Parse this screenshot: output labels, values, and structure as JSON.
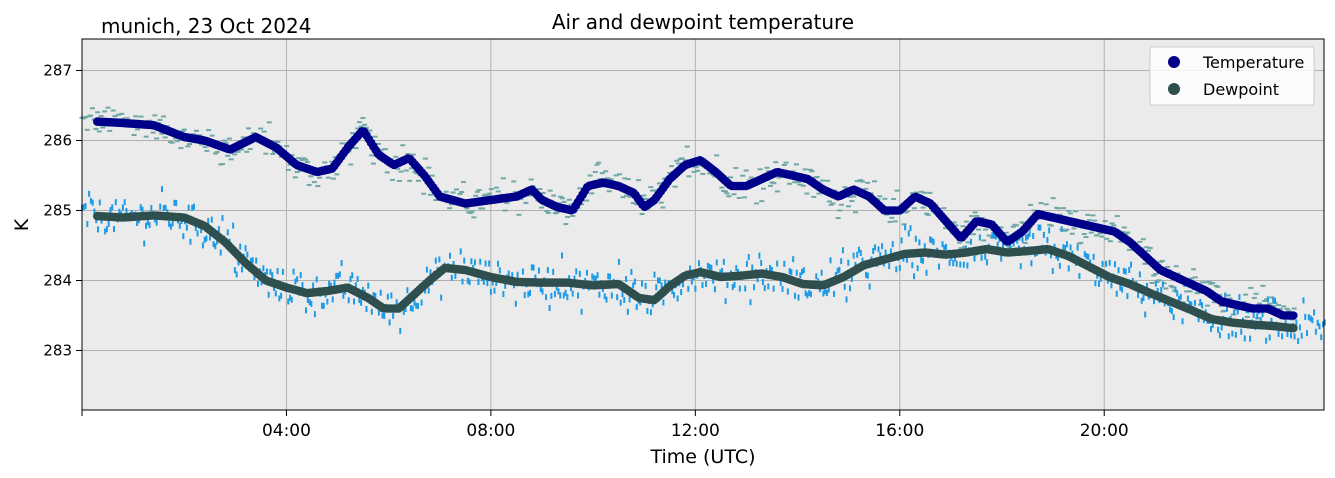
{
  "chart_data": {
    "type": "scatter",
    "title": "Air and dewpoint temperature",
    "subtitle": "munich, 23 Oct 2024",
    "xlabel": "Time (UTC)",
    "ylabel": "K",
    "x_unit": "hours_utc",
    "xlim": [
      0,
      24.3
    ],
    "ylim": [
      282.15,
      287.45
    ],
    "x_ticks": [
      {
        "value": 4,
        "label": "04:00"
      },
      {
        "value": 8,
        "label": "08:00"
      },
      {
        "value": 12,
        "label": "12:00"
      },
      {
        "value": 16,
        "label": "16:00"
      },
      {
        "value": 20,
        "label": "20:00"
      }
    ],
    "y_ticks": [
      {
        "value": 283,
        "label": "283"
      },
      {
        "value": 284,
        "label": "284"
      },
      {
        "value": 285,
        "label": "285"
      },
      {
        "value": 286,
        "label": "286"
      },
      {
        "value": 287,
        "label": "287"
      }
    ],
    "grid": true,
    "legend_position": "top-right",
    "background": "#ebebeb",
    "series": [
      {
        "name": "Temperature",
        "color": "#00008b",
        "raw_color": "#6fa8a6",
        "x": [
          0.3,
          0.8,
          1.4,
          2.0,
          2.4,
          2.9,
          3.4,
          3.8,
          4.2,
          4.6,
          4.9,
          5.2,
          5.5,
          5.8,
          6.1,
          6.4,
          6.7,
          7.0,
          7.5,
          8.0,
          8.5,
          8.8,
          9.0,
          9.3,
          9.6,
          9.9,
          10.2,
          10.5,
          10.8,
          11.0,
          11.2,
          11.5,
          11.8,
          12.1,
          12.4,
          12.7,
          13.0,
          13.3,
          13.6,
          13.9,
          14.2,
          14.5,
          14.8,
          15.1,
          15.4,
          15.7,
          16.0,
          16.3,
          16.6,
          16.9,
          17.2,
          17.5,
          17.8,
          18.1,
          18.4,
          18.7,
          19.0,
          19.3,
          19.6,
          19.9,
          20.2,
          20.5,
          20.8,
          21.1,
          21.4,
          21.7,
          22.0,
          22.3,
          22.6,
          22.9,
          23.2,
          23.5,
          23.7
        ],
        "y": [
          286.27,
          286.25,
          286.22,
          286.05,
          286.0,
          285.87,
          286.05,
          285.9,
          285.65,
          285.55,
          285.6,
          285.9,
          286.15,
          285.8,
          285.65,
          285.75,
          285.5,
          285.2,
          285.1,
          285.15,
          285.2,
          285.3,
          285.15,
          285.05,
          285.0,
          285.35,
          285.4,
          285.35,
          285.25,
          285.05,
          285.15,
          285.45,
          285.65,
          285.72,
          285.55,
          285.35,
          285.35,
          285.45,
          285.55,
          285.5,
          285.45,
          285.3,
          285.2,
          285.3,
          285.2,
          285.0,
          285.0,
          285.2,
          285.1,
          284.85,
          284.6,
          284.85,
          284.8,
          284.55,
          284.7,
          284.95,
          284.9,
          284.85,
          284.8,
          284.75,
          284.7,
          284.55,
          284.35,
          284.15,
          284.05,
          283.95,
          283.85,
          283.7,
          283.65,
          283.6,
          283.6,
          283.5,
          283.5
        ]
      },
      {
        "name": "Dewpoint",
        "color": "#2f4f4f",
        "raw_color": "#1e9be6",
        "x": [
          0.3,
          0.8,
          1.4,
          2.0,
          2.4,
          2.8,
          3.2,
          3.6,
          4.0,
          4.4,
          4.8,
          5.2,
          5.6,
          5.9,
          6.2,
          6.5,
          6.8,
          7.1,
          7.5,
          8.0,
          8.5,
          9.0,
          9.5,
          10.0,
          10.5,
          10.9,
          11.2,
          11.5,
          11.8,
          12.1,
          12.5,
          12.9,
          13.3,
          13.7,
          14.1,
          14.5,
          14.9,
          15.3,
          15.7,
          16.1,
          16.5,
          16.9,
          17.3,
          17.7,
          18.1,
          18.5,
          18.9,
          19.3,
          19.7,
          20.1,
          20.5,
          20.9,
          21.3,
          21.7,
          22.1,
          22.5,
          22.9,
          23.3,
          23.7
        ],
        "y": [
          284.92,
          284.9,
          284.93,
          284.9,
          284.78,
          284.55,
          284.25,
          284.0,
          283.9,
          283.82,
          283.85,
          283.9,
          283.75,
          283.6,
          283.6,
          283.8,
          284.0,
          284.18,
          284.15,
          284.05,
          283.98,
          283.97,
          283.97,
          283.93,
          283.95,
          283.75,
          283.72,
          283.92,
          284.07,
          284.12,
          284.05,
          284.07,
          284.1,
          284.05,
          283.95,
          283.93,
          284.05,
          284.22,
          284.3,
          284.38,
          284.4,
          284.37,
          284.4,
          284.45,
          284.4,
          284.42,
          284.45,
          284.35,
          284.2,
          284.05,
          283.95,
          283.82,
          283.7,
          283.58,
          283.45,
          283.4,
          283.37,
          283.35,
          283.32
        ]
      }
    ]
  }
}
